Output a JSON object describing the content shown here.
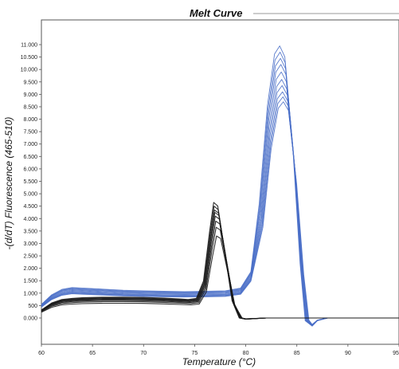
{
  "chart_data": {
    "type": "line",
    "title": "Melt Curve",
    "xlabel": "Temperature (°C)",
    "ylabel": "-(d/dT) Fluorescence (465-510)",
    "xlim": [
      60,
      95
    ],
    "ylim": [
      -2000,
      12000
    ],
    "x_ticks": [
      60,
      65,
      70,
      75,
      80,
      85,
      90,
      95
    ],
    "x_tick_labels": [
      "60",
      "65",
      "70",
      "75",
      "80",
      "85",
      "90",
      "95"
    ],
    "y_ticks": [
      0,
      500,
      1000,
      1500,
      2000,
      2500,
      3000,
      3500,
      4000,
      4500,
      5000,
      5500,
      6000,
      6500,
      7000,
      7500,
      8000,
      8500,
      9000,
      9500,
      10000,
      10500,
      11000
    ],
    "y_tick_labels": [
      "0.000",
      "500",
      "1.000",
      "1.500",
      "2.000",
      "2.500",
      "3.000",
      "3.500",
      "4.000",
      "4.500",
      "5.000",
      "5.500",
      "6.000",
      "6.500",
      "7.000",
      "7.500",
      "8.000",
      "8.500",
      "9.000",
      "9.500",
      "10.000",
      "10.500",
      "11.000"
    ],
    "grid": false,
    "series_groups": [
      {
        "color": "#4a6fc8",
        "peak_temp": 83.5,
        "peak_values": [
          10950,
          10700,
          10450,
          10200,
          9900,
          9600,
          9350,
          9100,
          8900,
          8700
        ],
        "x": [
          60,
          61,
          62,
          63,
          64,
          66,
          68,
          70,
          72,
          74,
          76,
          78,
          79.5,
          80.5,
          81.5,
          82.3,
          83.0,
          83.5,
          84.0,
          84.8,
          85.5,
          86.0,
          86.5,
          87.0,
          88,
          90,
          92,
          95
        ],
        "profile": [
          0.05,
          0.085,
          0.105,
          0.112,
          0.11,
          0.106,
          0.102,
          0.1,
          0.098,
          0.097,
          0.098,
          0.1,
          0.11,
          0.17,
          0.42,
          0.78,
          0.97,
          1.0,
          0.96,
          0.62,
          0.2,
          -0.01,
          -0.03,
          -0.01,
          0.0,
          0.0,
          0.0,
          0.0
        ]
      },
      {
        "color": "#1a1a1a",
        "peak_temp": 77.0,
        "peak_values": [
          4650,
          4500,
          4350,
          4250,
          4100,
          3900,
          3650,
          3300
        ],
        "x": [
          60,
          61,
          62,
          63,
          64,
          66,
          68,
          70,
          72,
          73.5,
          74.5,
          75.3,
          76.0,
          76.6,
          77.0,
          77.4,
          78.0,
          78.8,
          79.5,
          80.0,
          82,
          85,
          88,
          91,
          95
        ],
        "profile": [
          0.07,
          0.13,
          0.16,
          0.17,
          0.175,
          0.18,
          0.18,
          0.178,
          0.172,
          0.165,
          0.16,
          0.17,
          0.32,
          0.75,
          1.0,
          0.97,
          0.62,
          0.15,
          0.0,
          -0.01,
          0.0,
          0.0,
          0.0,
          0.0,
          0.0
        ]
      }
    ]
  }
}
